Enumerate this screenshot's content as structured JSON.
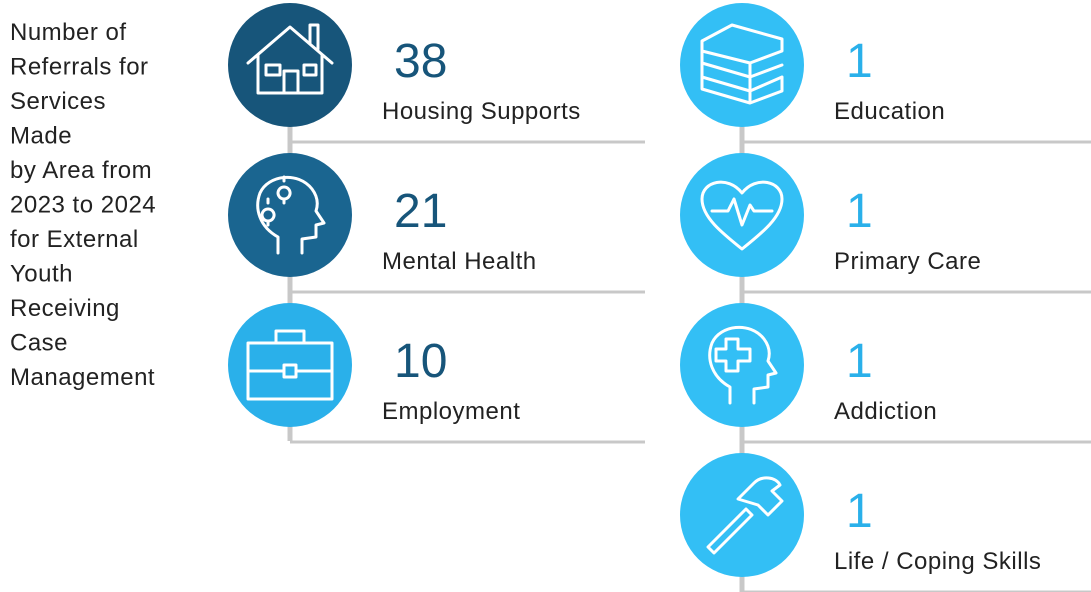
{
  "title_lines": [
    "Number of",
    "Referrals for",
    "Services",
    "Made",
    "by Area from",
    "2023 to 2024",
    "for External",
    "Youth",
    "Receiving",
    "Case",
    "Management"
  ],
  "columns": [
    {
      "items": [
        {
          "value": "38",
          "label": "Housing Supports",
          "color": "#17557a",
          "value_color": "#17557a"
        },
        {
          "value": "21",
          "label": "Mental Health",
          "color": "#1a6590",
          "value_color": "#17557a"
        },
        {
          "value": "10",
          "label": "Employment",
          "color": "#2ab0ea",
          "value_color": "#17557a"
        }
      ]
    },
    {
      "items": [
        {
          "value": "1",
          "label": "Education",
          "color": "#33bff5",
          "value_color": "#2ab0ea"
        },
        {
          "value": "1",
          "label": "Primary Care",
          "color": "#33bff5",
          "value_color": "#2ab0ea"
        },
        {
          "value": "1",
          "label": "Addiction",
          "color": "#33bff5",
          "value_color": "#2ab0ea"
        },
        {
          "value": "1",
          "label": "Life / Coping Skills",
          "color": "#33bff5",
          "value_color": "#2ab0ea"
        }
      ]
    }
  ]
}
